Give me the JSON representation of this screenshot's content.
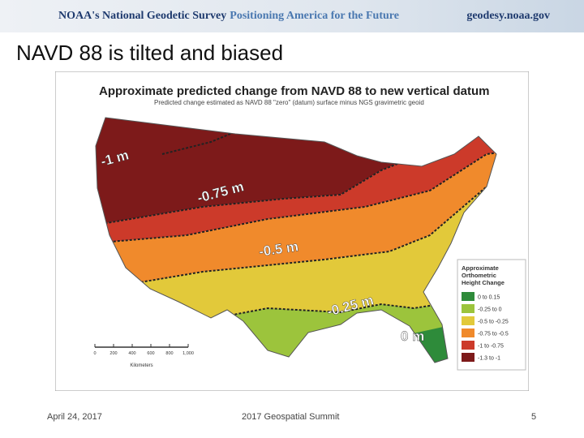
{
  "header": {
    "org": "NOAA's National Geodetic Survey",
    "tagline": "Positioning America for the Future",
    "url": "geodesy.noaa.gov"
  },
  "slide_title": "NAVD 88 is tilted and biased",
  "map": {
    "title": "Approximate predicted change from NAVD 88 to new vertical datum",
    "subtitle": "Predicted change estimated as NAVD 88 \"zero\" (datum) surface minus NGS gravimetric geoid",
    "contour_labels": [
      "-1 m",
      "-0.75 m",
      "-0.5 m",
      "-0.25 m",
      "0 m"
    ],
    "legend": {
      "title": [
        "Approximate",
        "Orthometric",
        "Height Change"
      ],
      "items": [
        {
          "label": "0 to 0.15",
          "color": "#2e8b3a"
        },
        {
          "label": "-0.25 to 0",
          "color": "#9cc43c"
        },
        {
          "label": "-0.5 to -0.25",
          "color": "#e2c93a"
        },
        {
          "label": "-0.75 to -0.5",
          "color": "#f08a2c"
        },
        {
          "label": "-1 to -0.75",
          "color": "#cc3a2a"
        },
        {
          "label": "-1.3 to -1",
          "color": "#7d1a1a"
        }
      ]
    },
    "scale": {
      "labels": [
        "0",
        "200",
        "400",
        "600",
        "800",
        "1,000"
      ],
      "unit": "Kilometers"
    }
  },
  "footer": {
    "date": "April 24, 2017",
    "event": "2017 Geospatial Summit",
    "page": "5"
  }
}
